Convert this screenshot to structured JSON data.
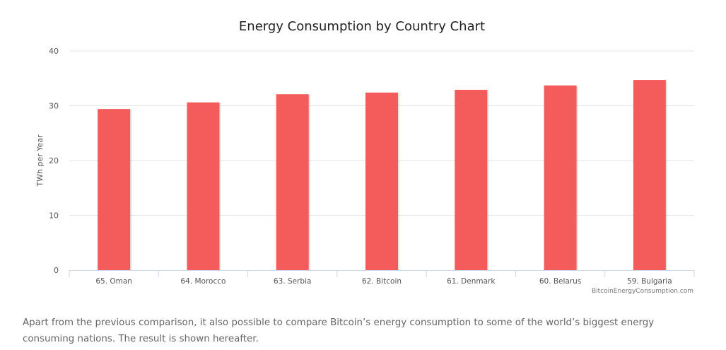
{
  "chart_data": {
    "type": "bar",
    "title": "Energy Consumption by Country Chart",
    "xlabel": "",
    "ylabel": "TWh per Year",
    "ylim": [
      0,
      40
    ],
    "yticks": [
      "0",
      "10",
      "20",
      "30",
      "40"
    ],
    "ytick_values": [
      0,
      10,
      20,
      30,
      40
    ],
    "grid": true,
    "legend": "none",
    "categories": [
      "65. Oman",
      "64. Morocco",
      "63. Serbia",
      "62. Bitcoin",
      "61. Denmark",
      "60. Belarus",
      "59. Bulgaria"
    ],
    "values": [
      29.4,
      30.6,
      32.1,
      32.4,
      32.9,
      33.7,
      34.7
    ],
    "bar_color": "#f45b5b",
    "credit": "BitcoinEnergyConsumption.com"
  },
  "paragraph": "Apart from the previous comparison, it also possible to compare Bitcoin’s energy consumption to some of the world’s biggest energy consuming nations. The result is shown hereafter."
}
